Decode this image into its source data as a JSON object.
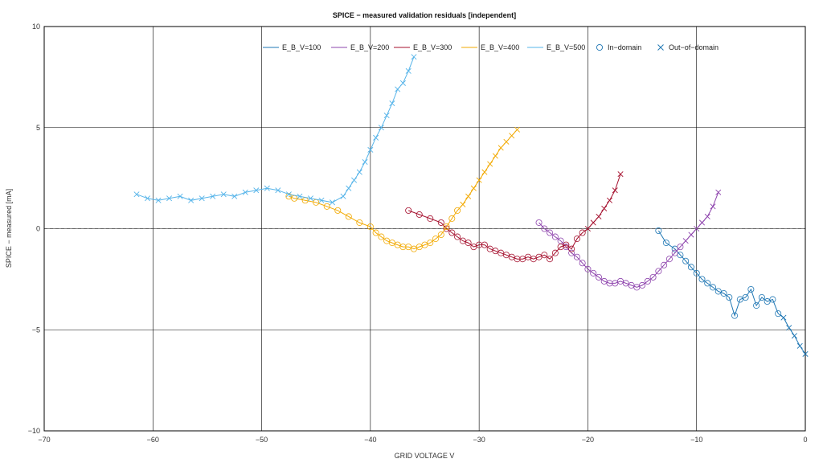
{
  "chart_data": {
    "type": "line",
    "title": "SPICE − measured validation residuals [independent]",
    "xlabel": "GRID VOLTAGE V",
    "ylabel": "SPICE − measured [mA]",
    "xlim": [
      -70,
      0
    ],
    "ylim": [
      -10,
      10
    ],
    "x_ticks": [
      -70,
      -60,
      -50,
      -40,
      -30,
      -20,
      -10,
      0
    ],
    "y_ticks": [
      -10,
      -5,
      0,
      5,
      10
    ],
    "x_tick_labels": [
      "−70",
      "−60",
      "−50",
      "−40",
      "−30",
      "−20",
      "−10",
      "0"
    ],
    "y_tick_labels": [
      "−10",
      "−5",
      "0",
      "5",
      "10"
    ],
    "grid": true,
    "legend_position": "top",
    "legend_markers": [
      {
        "label": "In−domain",
        "marker": "circle"
      },
      {
        "label": "Out−of−domain",
        "marker": "cross"
      }
    ],
    "series": [
      {
        "name": "E_B_V=100",
        "color": "#1f77b4",
        "x": [
          -13.5,
          -12.8,
          -12.0,
          -11.5,
          -11.0,
          -10.5,
          -10.0,
          -9.5,
          -9.0,
          -8.5,
          -8.0,
          -7.5,
          -7.0,
          -6.5,
          -6.0,
          -5.5,
          -5.0,
          -4.5,
          -4.0,
          -3.5,
          -3.0,
          -2.5,
          -2.0,
          -1.5,
          -1.0,
          -0.5,
          0.0
        ],
        "y": [
          -0.1,
          -0.7,
          -1.0,
          -1.3,
          -1.6,
          -1.9,
          -2.2,
          -2.5,
          -2.7,
          -2.9,
          -3.1,
          -3.2,
          -3.4,
          -4.3,
          -3.5,
          -3.4,
          -3.0,
          -3.8,
          -3.4,
          -3.6,
          -3.5,
          -4.2,
          -4.4,
          -4.9,
          -5.3,
          -5.8,
          -6.2
        ],
        "out_of_domain_from_index": 22
      },
      {
        "name": "E_B_V=200",
        "color": "#8e44ad",
        "x": [
          -24.5,
          -24.0,
          -23.5,
          -23.0,
          -22.5,
          -22.0,
          -21.5,
          -21.0,
          -20.5,
          -20.0,
          -19.5,
          -19.0,
          -18.5,
          -18.0,
          -17.5,
          -17.0,
          -16.5,
          -16.0,
          -15.5,
          -15.0,
          -14.5,
          -14.0,
          -13.5,
          -13.0,
          -12.5,
          -12.0,
          -11.5,
          -11.0,
          -10.5,
          -10.0,
          -9.5,
          -9.0,
          -8.5,
          -8.0
        ],
        "y": [
          0.3,
          0.0,
          -0.2,
          -0.4,
          -0.6,
          -0.9,
          -1.2,
          -1.4,
          -1.7,
          -2.0,
          -2.2,
          -2.4,
          -2.6,
          -2.7,
          -2.7,
          -2.6,
          -2.7,
          -2.8,
          -2.9,
          -2.8,
          -2.6,
          -2.4,
          -2.1,
          -1.8,
          -1.5,
          -1.2,
          -0.9,
          -0.6,
          -0.3,
          0.0,
          0.3,
          0.6,
          1.1,
          1.8
        ],
        "out_of_domain_from_index": 27
      },
      {
        "name": "E_B_V=300",
        "color": "#a50f2d",
        "x": [
          -36.5,
          -35.5,
          -34.5,
          -33.5,
          -33.0,
          -32.5,
          -32.0,
          -31.5,
          -31.0,
          -30.5,
          -30.0,
          -29.5,
          -29.0,
          -28.5,
          -28.0,
          -27.5,
          -27.0,
          -26.5,
          -26.0,
          -25.5,
          -25.0,
          -24.5,
          -24.0,
          -23.5,
          -23.0,
          -22.5,
          -22.0,
          -21.5,
          -21.0,
          -20.5,
          -20.0,
          -19.5,
          -19.0,
          -18.5,
          -18.0,
          -17.5,
          -17.0
        ],
        "y": [
          0.9,
          0.7,
          0.5,
          0.3,
          0.0,
          -0.2,
          -0.4,
          -0.6,
          -0.7,
          -0.9,
          -0.8,
          -0.8,
          -1.0,
          -1.1,
          -1.2,
          -1.3,
          -1.4,
          -1.5,
          -1.5,
          -1.4,
          -1.5,
          -1.4,
          -1.3,
          -1.5,
          -1.2,
          -0.9,
          -0.8,
          -1.0,
          -0.5,
          -0.2,
          0.0,
          0.3,
          0.6,
          1.0,
          1.4,
          1.9,
          2.7
        ],
        "out_of_domain_from_index": 30
      },
      {
        "name": "E_B_V=400",
        "color": "#f2a900",
        "x": [
          -47.5,
          -47.0,
          -46.0,
          -45.0,
          -44.0,
          -43.0,
          -42.0,
          -41.0,
          -40.0,
          -39.5,
          -39.0,
          -38.5,
          -38.0,
          -37.5,
          -37.0,
          -36.5,
          -36.0,
          -35.5,
          -35.0,
          -34.5,
          -34.0,
          -33.5,
          -33.0,
          -32.5,
          -32.0,
          -31.5,
          -31.0,
          -30.5,
          -30.0,
          -29.5,
          -29.0,
          -28.5,
          -28.0,
          -27.5,
          -27.0,
          -26.5
        ],
        "y": [
          1.6,
          1.5,
          1.4,
          1.3,
          1.1,
          0.9,
          0.6,
          0.3,
          0.1,
          -0.2,
          -0.4,
          -0.6,
          -0.7,
          -0.8,
          -0.9,
          -0.9,
          -1.0,
          -0.9,
          -0.8,
          -0.7,
          -0.5,
          -0.3,
          0.1,
          0.5,
          0.9,
          1.2,
          1.6,
          2.0,
          2.4,
          2.8,
          3.2,
          3.6,
          4.0,
          4.3,
          4.6,
          4.9
        ],
        "out_of_domain_from_index": 25
      },
      {
        "name": "E_B_V=500",
        "color": "#56b4e9",
        "x": [
          -61.5,
          -60.5,
          -59.5,
          -58.5,
          -57.5,
          -56.5,
          -55.5,
          -54.5,
          -53.5,
          -52.5,
          -51.5,
          -50.5,
          -49.5,
          -48.5,
          -47.5,
          -46.5,
          -45.5,
          -44.5,
          -43.5,
          -42.5,
          -42.0,
          -41.5,
          -41.0,
          -40.5,
          -40.0,
          -39.5,
          -39.0,
          -38.5,
          -38.0,
          -37.5,
          -37.0,
          -36.5,
          -36.0
        ],
        "y": [
          1.7,
          1.5,
          1.4,
          1.5,
          1.6,
          1.4,
          1.5,
          1.6,
          1.7,
          1.6,
          1.8,
          1.9,
          2.0,
          1.9,
          1.7,
          1.6,
          1.5,
          1.4,
          1.3,
          1.6,
          2.0,
          2.4,
          2.8,
          3.3,
          3.9,
          4.5,
          5.0,
          5.6,
          6.2,
          6.9,
          7.2,
          7.8,
          8.5
        ],
        "out_of_domain_from_index": 0
      }
    ]
  }
}
